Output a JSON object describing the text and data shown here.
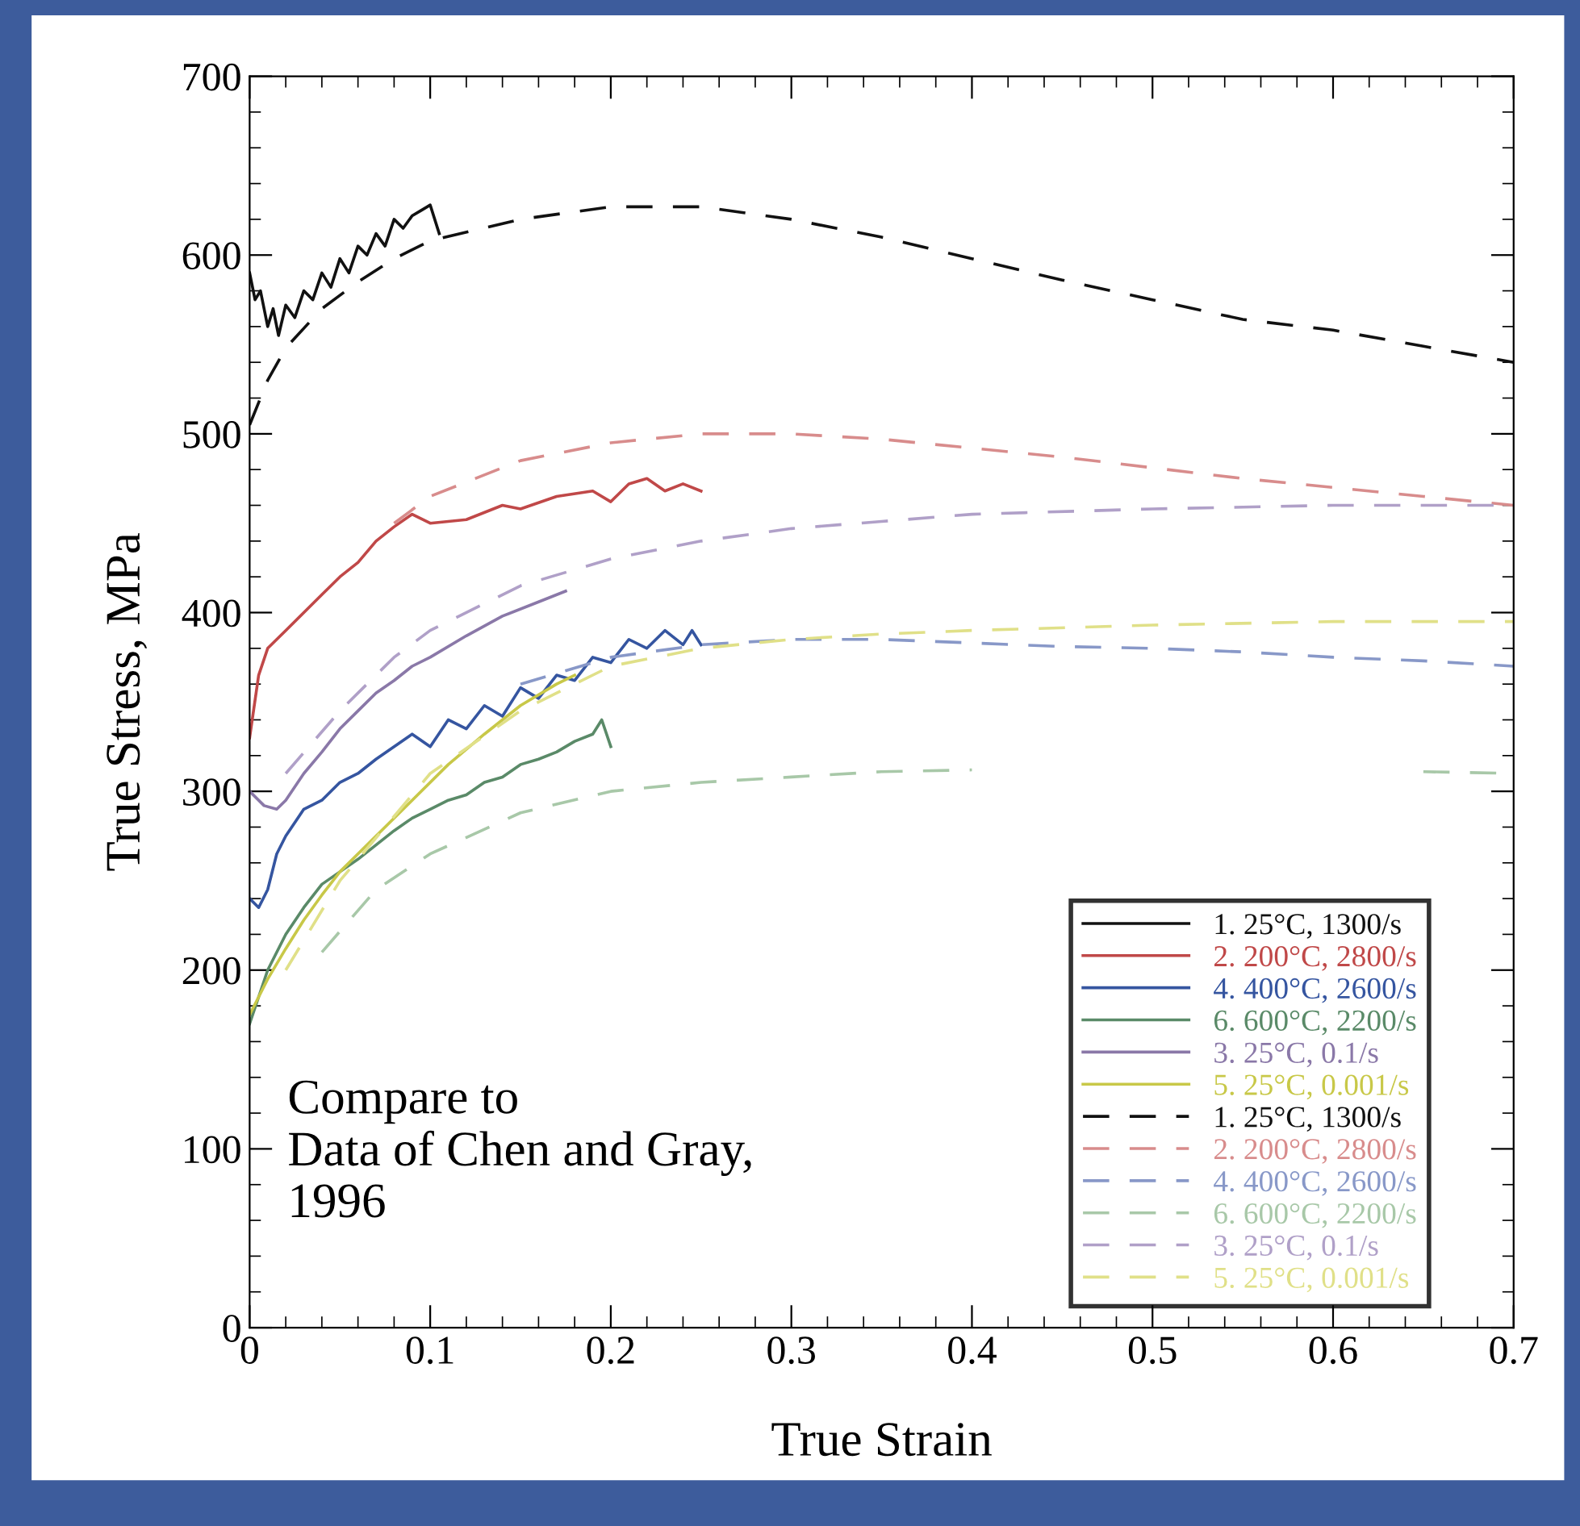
{
  "chart_data": {
    "type": "line",
    "xlabel": "True Strain",
    "ylabel": "True Stress, MPa",
    "xlim": [
      0,
      0.7
    ],
    "ylim": [
      0,
      700
    ],
    "xticks": [
      0,
      0.1,
      0.2,
      0.3,
      0.4,
      0.5,
      0.6,
      0.7
    ],
    "yticks": [
      0,
      100,
      200,
      300,
      400,
      500,
      600,
      700
    ],
    "grid": false,
    "legend": "bottom right",
    "marker": "none",
    "annotations": [
      {
        "text": "Compare to\nData of Chen and Gray,\n1996"
      }
    ],
    "series": [
      {
        "name": "1. 25°C, 1300/s",
        "color": "#111111",
        "line_style": "solid",
        "x": [
          0,
          0.003,
          0.006,
          0.01,
          0.013,
          0.016,
          0.02,
          0.025,
          0.03,
          0.035,
          0.04,
          0.045,
          0.05,
          0.055,
          0.06,
          0.065,
          0.07,
          0.075,
          0.08,
          0.085,
          0.09,
          0.095,
          0.1,
          0.105
        ],
        "values": [
          590,
          575,
          580,
          560,
          570,
          555,
          572,
          565,
          580,
          575,
          590,
          582,
          598,
          590,
          605,
          600,
          612,
          605,
          620,
          615,
          622,
          625,
          628,
          612
        ]
      },
      {
        "name": "2. 200°C, 2800/s",
        "color": "#c04848",
        "line_style": "solid",
        "x": [
          0,
          0.005,
          0.01,
          0.02,
          0.03,
          0.04,
          0.05,
          0.06,
          0.07,
          0.08,
          0.09,
          0.1,
          0.12,
          0.14,
          0.15,
          0.17,
          0.19,
          0.2,
          0.21,
          0.22,
          0.23,
          0.24,
          0.25
        ],
        "values": [
          330,
          365,
          380,
          390,
          400,
          410,
          420,
          428,
          440,
          448,
          455,
          450,
          452,
          460,
          458,
          465,
          468,
          462,
          472,
          475,
          468,
          472,
          468
        ]
      },
      {
        "name": "4. 400°C, 2600/s",
        "color": "#3555a0",
        "line_style": "solid",
        "x": [
          0,
          0.005,
          0.01,
          0.015,
          0.02,
          0.03,
          0.04,
          0.05,
          0.06,
          0.07,
          0.08,
          0.09,
          0.1,
          0.11,
          0.12,
          0.13,
          0.14,
          0.15,
          0.16,
          0.17,
          0.18,
          0.19,
          0.2,
          0.21,
          0.22,
          0.23,
          0.24,
          0.245,
          0.25
        ],
        "values": [
          240,
          235,
          245,
          265,
          275,
          290,
          295,
          305,
          310,
          318,
          325,
          332,
          325,
          340,
          335,
          348,
          342,
          358,
          352,
          365,
          362,
          375,
          372,
          385,
          380,
          390,
          382,
          390,
          382
        ]
      },
      {
        "name": "6. 600°C, 2200/s",
        "color": "#5a8a68",
        "line_style": "solid",
        "x": [
          0,
          0.005,
          0.01,
          0.02,
          0.03,
          0.04,
          0.05,
          0.06,
          0.07,
          0.08,
          0.09,
          0.1,
          0.11,
          0.12,
          0.13,
          0.14,
          0.15,
          0.16,
          0.17,
          0.18,
          0.19,
          0.195,
          0.2
        ],
        "values": [
          170,
          185,
          200,
          220,
          235,
          248,
          255,
          262,
          270,
          278,
          285,
          290,
          295,
          298,
          305,
          308,
          315,
          318,
          322,
          328,
          332,
          340,
          325
        ]
      },
      {
        "name": "3. 25°C, 0.1/s",
        "color": "#8a78a8",
        "line_style": "solid",
        "x": [
          0,
          0.008,
          0.015,
          0.02,
          0.03,
          0.04,
          0.05,
          0.06,
          0.07,
          0.08,
          0.09,
          0.1,
          0.12,
          0.14,
          0.16,
          0.175
        ],
        "values": [
          300,
          292,
          290,
          295,
          310,
          322,
          335,
          345,
          355,
          362,
          370,
          375,
          387,
          398,
          406,
          412
        ]
      },
      {
        "name": "5. 25°C, 0.001/s",
        "color": "#c8c848",
        "line_style": "solid",
        "x": [
          0,
          0.01,
          0.02,
          0.03,
          0.04,
          0.05,
          0.07,
          0.09,
          0.11,
          0.13,
          0.15,
          0.17,
          0.18
        ],
        "values": [
          175,
          195,
          212,
          228,
          242,
          255,
          275,
          295,
          315,
          332,
          348,
          360,
          365
        ]
      },
      {
        "name": "1. 25°C, 1300/s",
        "color": "#111111",
        "line_style": "dashed",
        "x": [
          0,
          0.01,
          0.02,
          0.04,
          0.06,
          0.08,
          0.1,
          0.15,
          0.2,
          0.25,
          0.3,
          0.35,
          0.4,
          0.45,
          0.5,
          0.55,
          0.6,
          0.65,
          0.7
        ],
        "values": [
          505,
          530,
          548,
          570,
          585,
          598,
          608,
          620,
          627,
          627,
          620,
          610,
          598,
          586,
          575,
          564,
          558,
          549,
          540
        ]
      },
      {
        "name": "2. 200°C, 2800/s",
        "color": "#d88c8c",
        "line_style": "dashed",
        "x": [
          0.08,
          0.1,
          0.15,
          0.2,
          0.25,
          0.3,
          0.35,
          0.4,
          0.45,
          0.5,
          0.55,
          0.6,
          0.65,
          0.7
        ],
        "values": [
          450,
          465,
          485,
          495,
          500,
          500,
          497,
          492,
          487,
          481,
          475,
          470,
          465,
          460
        ]
      },
      {
        "name": "4. 400°C, 2600/s",
        "color": "#8898c8",
        "line_style": "dashed",
        "x": [
          0.15,
          0.2,
          0.25,
          0.3,
          0.35,
          0.4,
          0.45,
          0.5,
          0.55,
          0.6,
          0.65,
          0.7
        ],
        "values": [
          360,
          375,
          382,
          385,
          385,
          383,
          381,
          380,
          378,
          375,
          373,
          370
        ]
      },
      {
        "name": "6. 600°C, 2200/s",
        "color": "#a8c8a8",
        "line_style": "dashed",
        "x": [
          0.04,
          0.07,
          0.1,
          0.15,
          0.2,
          0.25,
          0.3,
          0.35,
          0.4,
          0.45,
          0.5,
          0.55,
          0.6,
          0.65,
          0.7
        ],
        "values": [
          210,
          245,
          265,
          288,
          300,
          305,
          308,
          311,
          312,
          null,
          null,
          null,
          null,
          311,
          310
        ]
      },
      {
        "name": "3. 25°C, 0.1/s",
        "color": "#b0a0c8",
        "line_style": "dashed",
        "x": [
          0.02,
          0.05,
          0.08,
          0.1,
          0.15,
          0.2,
          0.25,
          0.3,
          0.35,
          0.4,
          0.5,
          0.6,
          0.7
        ],
        "values": [
          310,
          345,
          375,
          390,
          415,
          430,
          440,
          447,
          451,
          455,
          458,
          460,
          460
        ]
      },
      {
        "name": "5. 25°C, 0.001/s",
        "color": "#e0e088",
        "line_style": "dashed",
        "x": [
          0.02,
          0.05,
          0.1,
          0.15,
          0.2,
          0.25,
          0.3,
          0.35,
          0.4,
          0.5,
          0.6,
          0.7
        ],
        "values": [
          200,
          250,
          310,
          345,
          370,
          380,
          385,
          388,
          390,
          393,
          395,
          395
        ]
      }
    ]
  }
}
